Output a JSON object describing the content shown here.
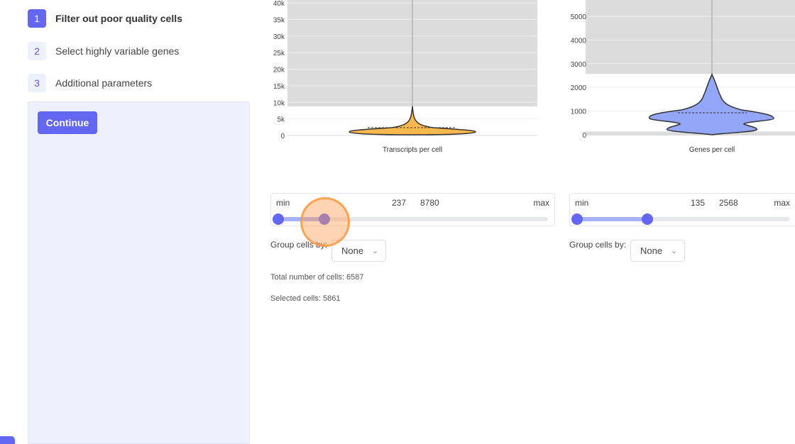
{
  "steps": [
    {
      "number": "1",
      "label": "Filter out poor quality cells",
      "active": true
    },
    {
      "number": "2",
      "label": "Select highly variable genes",
      "active": false
    },
    {
      "number": "3",
      "label": "Additional parameters",
      "active": false
    }
  ],
  "continue_label": "Continue",
  "chart_data": [
    {
      "type": "violin",
      "xlabel": "Transcripts per cell",
      "yticks": [
        "0",
        "5k",
        "10k",
        "15k",
        "20k",
        "25k",
        "30k",
        "35k",
        "40k"
      ],
      "ytick_values": [
        0,
        5000,
        10000,
        15000,
        20000,
        25000,
        30000,
        35000,
        40000
      ],
      "ylim": [
        -1000,
        41000
      ],
      "selected_range": [
        237,
        8780
      ],
      "color": "#fdb94e"
    },
    {
      "type": "violin",
      "xlabel": "Genes per cell",
      "yticks": [
        "0",
        "1000",
        "2000",
        "3000",
        "4000",
        "5000"
      ],
      "ytick_values": [
        0,
        1000,
        2000,
        3000,
        4000,
        5000
      ],
      "ylim": [
        -200,
        5700
      ],
      "selected_range": [
        135,
        2568
      ],
      "color": "#93a6f7"
    }
  ],
  "sliders": [
    {
      "min_label": "min",
      "max_label": "max",
      "low": "237",
      "high": "8780",
      "low_fraction": 0,
      "high_fraction": 0.17
    },
    {
      "min_label": "min",
      "max_label": "max",
      "low": "135",
      "high": "2568",
      "low_fraction": 0,
      "high_fraction": 0.33
    }
  ],
  "group_label": "Group cells by:",
  "group_value": "None",
  "total_cells": "Total number of cells: 6587",
  "selected_cells": "Selected cells: 5861"
}
